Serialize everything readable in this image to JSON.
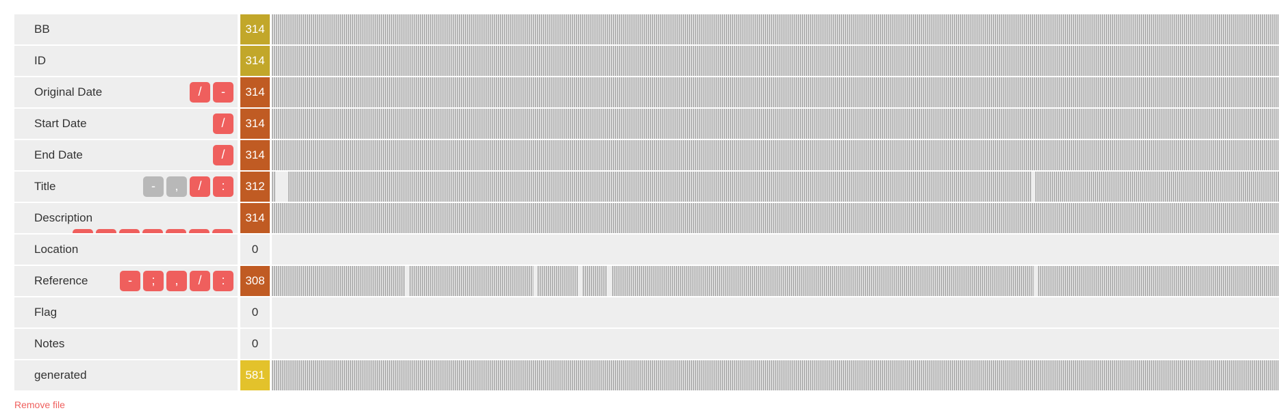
{
  "rows": [
    {
      "label": "BB",
      "count": "314",
      "count_color": "#c2a72a",
      "chips": [],
      "overflow_chips": [],
      "fill": [
        [
          0,
          1
        ]
      ]
    },
    {
      "label": "ID",
      "count": "314",
      "count_color": "#c2a72a",
      "chips": [],
      "overflow_chips": [],
      "fill": [
        [
          0,
          1
        ]
      ]
    },
    {
      "label": "Original Date",
      "count": "314",
      "count_color": "#c05b23",
      "chips": [
        {
          "symbol": "/",
          "state": "red"
        },
        {
          "symbol": "-",
          "state": "red"
        }
      ],
      "overflow_chips": [],
      "fill": [
        [
          0,
          1
        ]
      ]
    },
    {
      "label": "Start Date",
      "count": "314",
      "count_color": "#c05b23",
      "chips": [
        {
          "symbol": "/",
          "state": "red"
        }
      ],
      "overflow_chips": [],
      "fill": [
        [
          0,
          1
        ]
      ]
    },
    {
      "label": "End Date",
      "count": "314",
      "count_color": "#c05b23",
      "chips": [
        {
          "symbol": "/",
          "state": "red"
        }
      ],
      "overflow_chips": [],
      "fill": [
        [
          0,
          1
        ]
      ]
    },
    {
      "label": "Title",
      "count": "312",
      "count_color": "#c05b23",
      "chips": [
        {
          "symbol": "-",
          "state": "grey"
        },
        {
          "symbol": ",",
          "state": "grey"
        },
        {
          "symbol": "/",
          "state": "red"
        },
        {
          "symbol": ":",
          "state": "red"
        }
      ],
      "overflow_chips": [],
      "fill": [
        [
          0,
          0.004
        ],
        [
          0.016,
          0.743
        ],
        [
          0.747,
          1
        ]
      ]
    },
    {
      "label": "Description",
      "count": "314",
      "count_color": "#c05b23",
      "chips": [],
      "overflow_chips": [
        "red",
        "red",
        "red",
        "red",
        "red",
        "red",
        "red"
      ],
      "fill": [
        [
          0,
          1
        ]
      ]
    },
    {
      "label": "Location",
      "count": "0",
      "count_color": "",
      "chips": [],
      "overflow_chips": [],
      "fill": []
    },
    {
      "label": "Reference",
      "count": "308",
      "count_color": "#c05b23",
      "chips": [
        {
          "symbol": "-",
          "state": "red"
        },
        {
          "symbol": ";",
          "state": "red"
        },
        {
          "symbol": ",",
          "state": "red"
        },
        {
          "symbol": "/",
          "state": "red"
        },
        {
          "symbol": ":",
          "state": "red"
        }
      ],
      "overflow_chips": [],
      "fill": [
        [
          0,
          0.131
        ],
        [
          0.135,
          0.256
        ],
        [
          0.26,
          0.3
        ],
        [
          0.304,
          0.328
        ],
        [
          0.333,
          0.746
        ],
        [
          0.75,
          1
        ]
      ]
    },
    {
      "label": "Flag",
      "count": "0",
      "count_color": "",
      "chips": [],
      "overflow_chips": [],
      "fill": []
    },
    {
      "label": "Notes",
      "count": "0",
      "count_color": "",
      "chips": [],
      "overflow_chips": [],
      "fill": []
    },
    {
      "label": "generated",
      "count": "581",
      "count_color": "#e3c22b",
      "chips": [],
      "overflow_chips": [],
      "fill": [
        [
          0,
          1
        ]
      ]
    }
  ],
  "remove_link": "Remove file",
  "colors": {
    "chip_red": "#ef5f5d",
    "chip_grey": "#b8b8b8",
    "cell_bg": "#eeeeee",
    "stripe": "#b3b3b3"
  }
}
